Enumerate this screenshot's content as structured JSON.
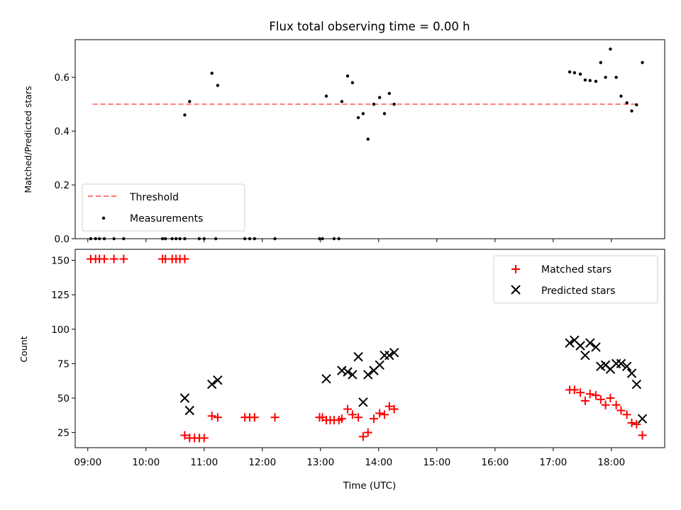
{
  "chart_data": [
    {
      "type": "scatter",
      "title": "Flux total observing time = 0.00 h",
      "ylabel": "Matched/Predicted stars",
      "xlabel": "",
      "x_unit": "hours UTC",
      "xlim": [
        "08:47",
        "18:55"
      ],
      "ylim": [
        0,
        0.74
      ],
      "yticks": [
        "0.0",
        "0.2",
        "0.4",
        "0.6"
      ],
      "ytick_values": [
        0,
        0.2,
        0.4,
        0.6
      ],
      "legend": {
        "placement": "lower-left",
        "entries": [
          "Threshold",
          "Measurements"
        ]
      },
      "series": [
        {
          "name": "Threshold",
          "kind": "dashed-line",
          "color": "#ff7a7a",
          "points": [
            [
              "09:05",
              0.5
            ],
            [
              "18:25",
              0.5
            ]
          ]
        },
        {
          "name": "Measurements",
          "kind": "dots",
          "color": "#000000",
          "points": [
            [
              "09:03",
              0
            ],
            [
              "09:08",
              0
            ],
            [
              "09:12",
              0
            ],
            [
              "09:17",
              0
            ],
            [
              "09:27",
              0
            ],
            [
              "09:37",
              0
            ],
            [
              "10:17",
              0
            ],
            [
              "10:20",
              0
            ],
            [
              "10:27",
              0
            ],
            [
              "10:31",
              0
            ],
            [
              "10:35",
              0
            ],
            [
              "10:40",
              0
            ],
            [
              "10:55",
              0
            ],
            [
              "11:00",
              0
            ],
            [
              "11:12",
              0
            ],
            [
              "11:42",
              0
            ],
            [
              "11:47",
              0
            ],
            [
              "11:52",
              0
            ],
            [
              "12:13",
              0
            ],
            [
              "12:59",
              0
            ],
            [
              "13:02",
              0
            ],
            [
              "13:14",
              0
            ],
            [
              "13:19",
              0
            ],
            [
              "10:40",
              0.46
            ],
            [
              "10:45",
              0.51
            ],
            [
              "11:08",
              0.615
            ],
            [
              "11:14",
              0.57
            ],
            [
              "13:06",
              0.53
            ],
            [
              "13:22",
              0.51
            ],
            [
              "13:28",
              0.605
            ],
            [
              "13:33",
              0.58
            ],
            [
              "13:39",
              0.45
            ],
            [
              "13:44",
              0.465
            ],
            [
              "13:49",
              0.37
            ],
            [
              "13:55",
              0.5
            ],
            [
              "14:01",
              0.525
            ],
            [
              "14:06",
              0.465
            ],
            [
              "14:11",
              0.54
            ],
            [
              "14:16",
              0.5
            ],
            [
              "17:17",
              0.62
            ],
            [
              "17:22",
              0.617
            ],
            [
              "17:28",
              0.612
            ],
            [
              "17:33",
              0.59
            ],
            [
              "17:38",
              0.588
            ],
            [
              "17:44",
              0.585
            ],
            [
              "17:49",
              0.655
            ],
            [
              "17:54",
              0.6
            ],
            [
              "17:59",
              0.705
            ],
            [
              "18:05",
              0.6
            ],
            [
              "18:10",
              0.53
            ],
            [
              "18:16",
              0.505
            ],
            [
              "18:21",
              0.475
            ],
            [
              "18:26",
              0.498
            ],
            [
              "18:32",
              0.655
            ]
          ]
        }
      ]
    },
    {
      "type": "scatter",
      "title": "",
      "ylabel": "Count",
      "xlabel": "Time (UTC)",
      "x_unit": "hours UTC",
      "xlim": [
        "08:47",
        "18:55"
      ],
      "ylim": [
        14,
        158
      ],
      "xticks": [
        "09:00",
        "10:00",
        "11:00",
        "12:00",
        "13:00",
        "14:00",
        "15:00",
        "16:00",
        "17:00",
        "18:00"
      ],
      "yticks": [
        "25",
        "50",
        "75",
        "100",
        "125",
        "150"
      ],
      "ytick_values": [
        25,
        50,
        75,
        100,
        125,
        150
      ],
      "legend": {
        "placement": "upper-right",
        "entries": [
          "Matched stars",
          "Predicted stars"
        ]
      },
      "series": [
        {
          "name": "Matched stars",
          "marker": "plus",
          "color": "#ff0000",
          "points": [
            [
              "09:03",
              151
            ],
            [
              "09:08",
              151
            ],
            [
              "09:12",
              151
            ],
            [
              "09:17",
              151
            ],
            [
              "09:27",
              151
            ],
            [
              "09:37",
              151
            ],
            [
              "10:17",
              151
            ],
            [
              "10:20",
              151
            ],
            [
              "10:27",
              151
            ],
            [
              "10:31",
              151
            ],
            [
              "10:35",
              151
            ],
            [
              "10:40",
              151
            ],
            [
              "10:40",
              23
            ],
            [
              "10:45",
              21
            ],
            [
              "10:50",
              21
            ],
            [
              "10:55",
              21
            ],
            [
              "11:00",
              21
            ],
            [
              "11:08",
              37
            ],
            [
              "11:14",
              36
            ],
            [
              "11:42",
              36
            ],
            [
              "11:47",
              36
            ],
            [
              "11:52",
              36
            ],
            [
              "12:13",
              36
            ],
            [
              "12:59",
              36
            ],
            [
              "13:02",
              36
            ],
            [
              "13:06",
              34
            ],
            [
              "13:10",
              34
            ],
            [
              "13:14",
              34
            ],
            [
              "13:19",
              34
            ],
            [
              "13:22",
              35
            ],
            [
              "13:28",
              42
            ],
            [
              "13:33",
              38
            ],
            [
              "13:39",
              36
            ],
            [
              "13:44",
              22
            ],
            [
              "13:49",
              25
            ],
            [
              "13:55",
              35
            ],
            [
              "14:01",
              39
            ],
            [
              "14:06",
              38
            ],
            [
              "14:11",
              44
            ],
            [
              "14:16",
              42
            ],
            [
              "17:17",
              56
            ],
            [
              "17:22",
              56
            ],
            [
              "17:28",
              54
            ],
            [
              "17:33",
              48
            ],
            [
              "17:38",
              53
            ],
            [
              "17:44",
              52
            ],
            [
              "17:49",
              49
            ],
            [
              "17:54",
              45
            ],
            [
              "17:59",
              50
            ],
            [
              "18:05",
              45
            ],
            [
              "18:10",
              41
            ],
            [
              "18:16",
              38
            ],
            [
              "18:21",
              32
            ],
            [
              "18:26",
              31
            ],
            [
              "18:32",
              23
            ]
          ]
        },
        {
          "name": "Predicted stars",
          "marker": "x",
          "color": "#000000",
          "points": [
            [
              "10:40",
              50
            ],
            [
              "10:45",
              41
            ],
            [
              "11:08",
              60
            ],
            [
              "11:14",
              63
            ],
            [
              "13:06",
              64
            ],
            [
              "13:22",
              70
            ],
            [
              "13:28",
              69
            ],
            [
              "13:33",
              67
            ],
            [
              "13:39",
              80
            ],
            [
              "13:44",
              47
            ],
            [
              "13:49",
              67
            ],
            [
              "13:55",
              70
            ],
            [
              "14:01",
              74
            ],
            [
              "14:06",
              81
            ],
            [
              "14:11",
              81
            ],
            [
              "14:16",
              83
            ],
            [
              "17:17",
              90
            ],
            [
              "17:22",
              92
            ],
            [
              "17:28",
              88
            ],
            [
              "17:33",
              81
            ],
            [
              "17:38",
              90
            ],
            [
              "17:44",
              87
            ],
            [
              "17:49",
              73
            ],
            [
              "17:54",
              74
            ],
            [
              "17:59",
              71
            ],
            [
              "18:05",
              75
            ],
            [
              "18:10",
              75
            ],
            [
              "18:16",
              73
            ],
            [
              "18:21",
              68
            ],
            [
              "18:26",
              60
            ],
            [
              "18:32",
              35
            ]
          ]
        }
      ]
    }
  ]
}
